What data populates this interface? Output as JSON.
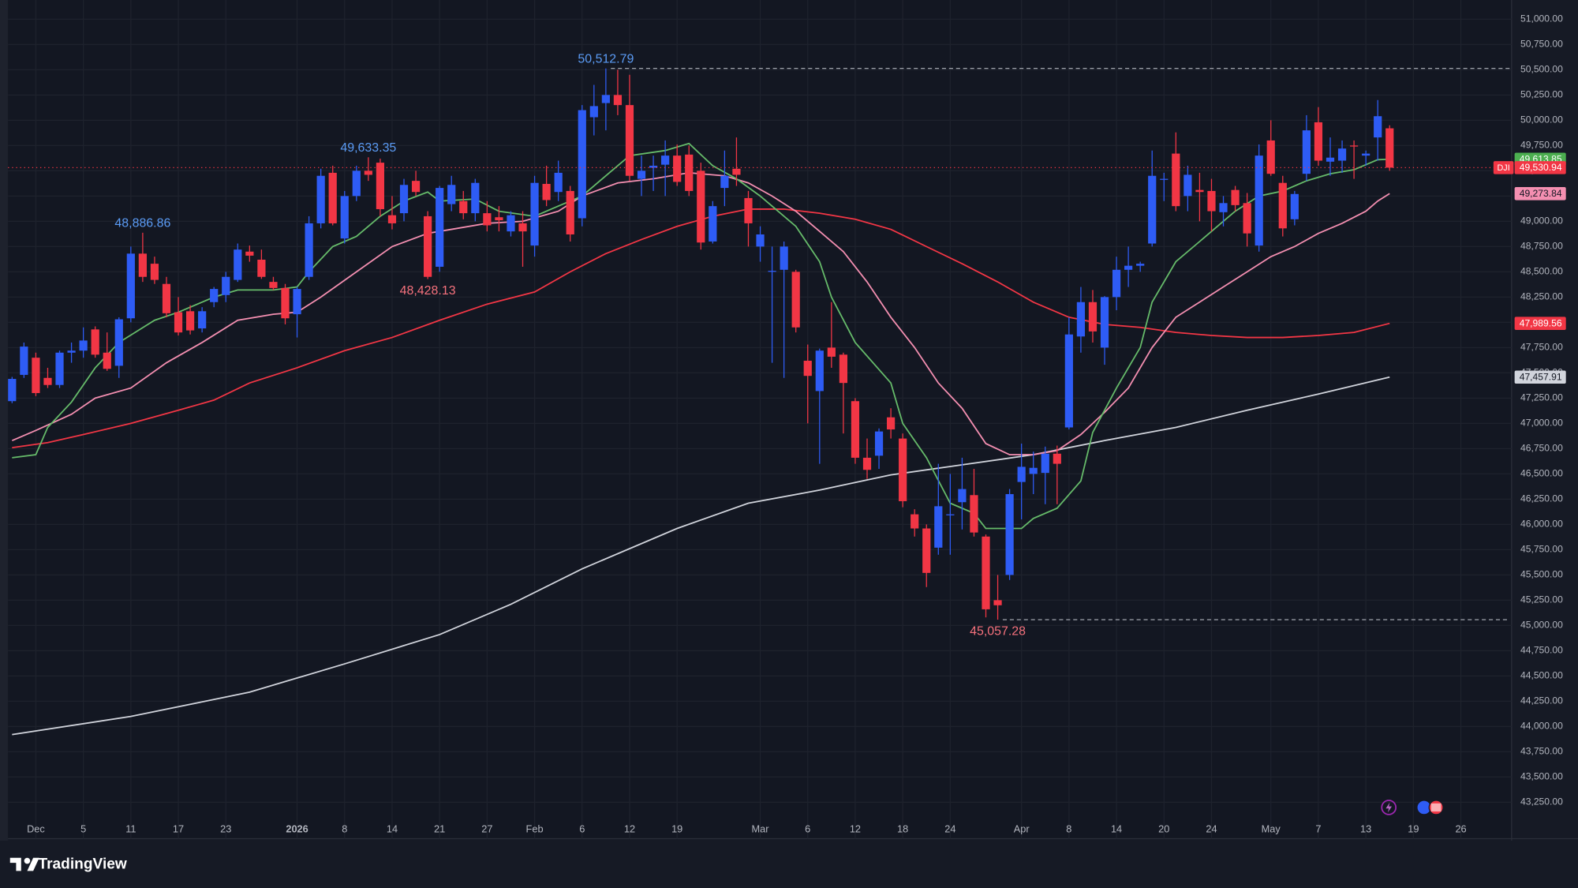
{
  "chart_data": {
    "type": "candlestick",
    "symbol": "DJI",
    "up_color": "#2e5cf5",
    "down_color": "#f23645",
    "grid": true,
    "open": [
      47220,
      47480,
      47650,
      47450,
      47380,
      47700,
      47720,
      47930,
      47700,
      47570,
      48040,
      48680,
      48580,
      48380,
      48100,
      48110,
      47940,
      48200,
      48270,
      48420,
      48700,
      48620,
      48400,
      48340,
      48080,
      48450,
      48980,
      49480,
      48830,
      49250,
      49500,
      49580,
      49060,
      49080,
      49400,
      49050,
      48550,
      49170,
      49200,
      49080,
      49080,
      49040,
      48900,
      48980,
      48760,
      49370,
      49290,
      49300,
      49030,
      50030,
      50170,
      50250,
      50150,
      49420,
      49530,
      49560,
      49650,
      49660,
      49500,
      48800,
      49330,
      49520,
      49230,
      48750,
      48500,
      48520,
      48500,
      47620,
      47320,
      47750,
      47680,
      47220,
      46660,
      46680,
      47060,
      46850,
      46100,
      45960,
      45770,
      46090,
      46220,
      46290,
      45880,
      45250,
      45500,
      46420,
      46500,
      46510,
      46700,
      46960,
      47860,
      48200,
      47750,
      48250,
      48520,
      48560,
      48780,
      49410,
      49670,
      49250,
      49310,
      49300,
      49090,
      49310,
      49180,
      48760,
      49800,
      49380,
      49020,
      49470,
      49980,
      49590,
      49600,
      49750,
      49650,
      49830,
      49920
    ],
    "high": [
      47460,
      47800,
      47700,
      47550,
      47720,
      47800,
      47950,
      47960,
      47900,
      48050,
      48750,
      48886.86,
      48650,
      48450,
      48250,
      48170,
      48150,
      48350,
      48500,
      48780,
      48760,
      48720,
      48450,
      48380,
      48350,
      49050,
      49520,
      49550,
      49300,
      49550,
      49633.35,
      49620,
      49250,
      49420,
      49500,
      49100,
      49350,
      49450,
      49300,
      49420,
      49200,
      49150,
      49100,
      49100,
      49450,
      49550,
      49600,
      49350,
      50150,
      50350,
      50512.79,
      50500,
      50450,
      49650,
      49650,
      49800,
      49760,
      49750,
      49580,
      49200,
      49700,
      49830,
      49300,
      48950,
      48750,
      48800,
      48520,
      47780,
      47740,
      48200,
      47700,
      47250,
      46850,
      46950,
      47150,
      46900,
      46150,
      46000,
      46600,
      46500,
      46660,
      46550,
      45900,
      45500,
      46350,
      46800,
      46720,
      46770,
      46780,
      48050,
      48350,
      48320,
      48260,
      48650,
      48750,
      48600,
      49700,
      49480,
      49880,
      49550,
      49480,
      49420,
      49250,
      49350,
      49280,
      49760,
      50000,
      49450,
      49300,
      50050,
      50130,
      49830,
      49800,
      49800,
      49700,
      50200,
      49950
    ],
    "low": [
      47200,
      47450,
      47270,
      47350,
      47350,
      47600,
      47650,
      47650,
      47520,
      47450,
      48000,
      48400,
      48380,
      48050,
      47870,
      47880,
      47900,
      48150,
      48200,
      48400,
      48600,
      48430,
      48320,
      47980,
      47850,
      48420,
      48930,
      48960,
      48780,
      49200,
      49400,
      49050,
      48920,
      49000,
      49250,
      48428.13,
      48500,
      49100,
      49020,
      49000,
      48900,
      48900,
      48850,
      48550,
      48650,
      49150,
      49200,
      48800,
      48950,
      49850,
      49900,
      50050,
      49400,
      49250,
      49300,
      49250,
      49350,
      49250,
      48720,
      48780,
      49150,
      49350,
      48750,
      48600,
      47600,
      47450,
      47900,
      47000,
      46600,
      47550,
      46900,
      46600,
      46450,
      46550,
      46850,
      46170,
      45880,
      45380,
      45700,
      45700,
      45950,
      45880,
      45080,
      45057.28,
      45450,
      46050,
      46300,
      46200,
      46200,
      46940,
      47700,
      47800,
      47580,
      48120,
      48350,
      48500,
      48750,
      49200,
      49100,
      49100,
      49000,
      48900,
      48950,
      49100,
      48750,
      48700,
      49450,
      48850,
      48960,
      49400,
      49550,
      49450,
      49480,
      49420,
      49550,
      49600,
      49500
    ],
    "close": [
      47440,
      47760,
      47300,
      47380,
      47700,
      47720,
      47820,
      47680,
      47540,
      48030,
      48680,
      48450,
      48420,
      48090,
      47900,
      47920,
      48110,
      48330,
      48450,
      48720,
      48660,
      48450,
      48340,
      48040,
      48330,
      48980,
      49450,
      48980,
      49250,
      49500,
      49460,
      49120,
      48980,
      49360,
      49290,
      48450,
      49330,
      49360,
      49080,
      49380,
      48960,
      49010,
      49060,
      48900,
      49380,
      49210,
      49480,
      48870,
      50100,
      50140,
      50250,
      50150,
      49450,
      49500,
      49550,
      49650,
      49390,
      49300,
      48790,
      49150,
      49450,
      49460,
      48980,
      48870,
      48510,
      48750,
      47950,
      47470,
      47720,
      47660,
      47400,
      46660,
      46540,
      46920,
      46940,
      46230,
      45960,
      45520,
      46180,
      46100,
      46350,
      45920,
      45160,
      45200,
      46300,
      46570,
      46560,
      46700,
      46600,
      47880,
      48200,
      47910,
      48250,
      48520,
      48560,
      48580,
      49450,
      49420,
      49150,
      49460,
      49290,
      49100,
      49180,
      49160,
      48880,
      49650,
      49470,
      48930,
      49270,
      49900,
      49600,
      49630,
      49720,
      49740,
      49670,
      50040,
      49530.94
    ],
    "last_close_label": "49,530.94",
    "xlim": [
      -0.34,
      126.1
    ],
    "ylim": [
      42890,
      51190
    ],
    "xticks": [
      {
        "value": 2,
        "label": "Dec"
      },
      {
        "value": 6,
        "label": "5"
      },
      {
        "value": 10,
        "label": "11"
      },
      {
        "value": 14,
        "label": "17"
      },
      {
        "value": 18,
        "label": "23"
      },
      {
        "value": 24,
        "label": "2026"
      },
      {
        "value": 28,
        "label": "8"
      },
      {
        "value": 32,
        "label": "14"
      },
      {
        "value": 36,
        "label": "21"
      },
      {
        "value": 40,
        "label": "27"
      },
      {
        "value": 44,
        "label": "Feb"
      },
      {
        "value": 48,
        "label": "6"
      },
      {
        "value": 52,
        "label": "12"
      },
      {
        "value": 56,
        "label": "19"
      },
      {
        "value": 63,
        "label": "Mar"
      },
      {
        "value": 67,
        "label": "6"
      },
      {
        "value": 71,
        "label": "12"
      },
      {
        "value": 75,
        "label": "18"
      },
      {
        "value": 79,
        "label": "24"
      },
      {
        "value": 85,
        "label": "Apr"
      },
      {
        "value": 89,
        "label": "8"
      },
      {
        "value": 93,
        "label": "14"
      },
      {
        "value": 97,
        "label": "20"
      },
      {
        "value": 101,
        "label": "24"
      },
      {
        "value": 106,
        "label": "May"
      },
      {
        "value": 110,
        "label": "7"
      },
      {
        "value": 114,
        "label": "13"
      },
      {
        "value": 118,
        "label": "19"
      },
      {
        "value": 122,
        "label": "26"
      }
    ],
    "yticks": [
      {
        "value": 43250,
        "label": "43,250.00"
      },
      {
        "value": 43500,
        "label": "43,500.00"
      },
      {
        "value": 43750,
        "label": "43,750.00"
      },
      {
        "value": 44000,
        "label": "44,000.00"
      },
      {
        "value": 44250,
        "label": "44,250.00"
      },
      {
        "value": 44500,
        "label": "44,500.00"
      },
      {
        "value": 44750,
        "label": "44,750.00"
      },
      {
        "value": 45000,
        "label": "45,000.00"
      },
      {
        "value": 45250,
        "label": "45,250.00"
      },
      {
        "value": 45500,
        "label": "45,500.00"
      },
      {
        "value": 45750,
        "label": "45,750.00"
      },
      {
        "value": 46000,
        "label": "46,000.00"
      },
      {
        "value": 46250,
        "label": "46,250.00"
      },
      {
        "value": 46500,
        "label": "46,500.00"
      },
      {
        "value": 46750,
        "label": "46,750.00"
      },
      {
        "value": 47000,
        "label": "47,000.00"
      },
      {
        "value": 47250,
        "label": "47,250.00"
      },
      {
        "value": 47500,
        "label": "47,500.00"
      },
      {
        "value": 47750,
        "label": "47,750.00"
      },
      {
        "value": 48000,
        "label": "48,000.00"
      },
      {
        "value": 48250,
        "label": "48,250.00"
      },
      {
        "value": 48500,
        "label": "48,500.00"
      },
      {
        "value": 48750,
        "label": "48,750.00"
      },
      {
        "value": 49000,
        "label": "49,000.00"
      },
      {
        "value": 49250,
        "label": "49,250.00"
      },
      {
        "value": 49500,
        "label": "49,500.00"
      },
      {
        "value": 49750,
        "label": "49,750.00"
      },
      {
        "value": 50000,
        "label": "50,000.00"
      },
      {
        "value": 50250,
        "label": "50,250.00"
      },
      {
        "value": 50500,
        "label": "50,500.00"
      },
      {
        "value": 50750,
        "label": "50,750.00"
      },
      {
        "value": 51000,
        "label": "51,000.00"
      }
    ],
    "moving_averages": [
      {
        "color": "#ffffff",
        "tag_text_color": "#131722",
        "tag_color": "#d1d4dc",
        "line_color": "#d1d4dc",
        "x": [
          0,
          10,
          20,
          28,
          36,
          42,
          48,
          56,
          62,
          68,
          74,
          80,
          86,
          92,
          98,
          104,
          110,
          116
        ],
        "values": [
          43920,
          44100,
          44340,
          44620,
          44910,
          45210,
          45560,
          45960,
          46210,
          46340,
          46490,
          46590,
          46690,
          46830,
          46960,
          47130,
          47290,
          47457.91
        ],
        "last_label": "47,457.91"
      },
      {
        "color": "#f23645",
        "tag_text_color": "#ffffff",
        "tag_color": "#f23645",
        "line_color": "#f23645",
        "x": [
          0,
          3,
          6,
          10,
          14,
          17,
          20,
          24,
          28,
          32,
          36,
          40,
          44,
          47,
          50,
          53,
          56,
          59,
          62,
          65,
          68,
          71,
          74,
          77,
          80,
          83,
          86,
          89,
          92,
          95,
          98,
          101,
          104,
          107,
          110,
          113,
          116
        ],
        "values": [
          46760,
          46810,
          46890,
          47000,
          47130,
          47230,
          47400,
          47550,
          47720,
          47850,
          48020,
          48180,
          48300,
          48500,
          48680,
          48820,
          48950,
          49050,
          49120,
          49120,
          49080,
          49020,
          48920,
          48750,
          48580,
          48400,
          48200,
          48050,
          47980,
          47950,
          47900,
          47870,
          47850,
          47850,
          47870,
          47900,
          47989.56
        ],
        "last_label": "47,989.56"
      },
      {
        "color": "#f48fb1",
        "tag_text_color": "#131722",
        "tag_color": "#f48fb1",
        "line_color": "#f48fb1",
        "x": [
          0,
          2,
          5,
          7,
          10,
          13,
          16,
          19,
          22,
          24,
          26,
          29,
          32,
          35,
          37,
          40,
          43,
          46,
          48,
          51,
          54,
          57,
          60,
          62,
          64,
          66,
          68,
          70,
          72,
          74,
          76,
          78,
          80,
          82,
          84,
          86,
          88,
          90,
          92,
          94,
          96,
          98,
          100,
          102,
          104,
          106,
          108,
          110,
          112,
          114,
          115,
          116
        ],
        "values": [
          46830,
          46930,
          47090,
          47250,
          47350,
          47600,
          47800,
          48020,
          48080,
          48100,
          48250,
          48500,
          48750,
          48880,
          48920,
          48980,
          49000,
          49100,
          49250,
          49380,
          49420,
          49480,
          49450,
          49380,
          49250,
          49100,
          48900,
          48700,
          48400,
          48050,
          47750,
          47400,
          47150,
          46800,
          46690,
          46690,
          46730,
          46890,
          47110,
          47350,
          47750,
          48050,
          48200,
          48350,
          48500,
          48650,
          48750,
          48880,
          48980,
          49100,
          49200,
          49273.84
        ],
        "last_label": "49,273.84"
      },
      {
        "color": "#66bb6a",
        "tag_text_color": "#ffffff",
        "tag_color": "#4caf50",
        "line_color": "#66bb6a",
        "x": [
          0,
          2,
          3,
          5,
          7,
          9,
          12,
          14,
          17,
          19,
          22,
          24,
          25,
          27,
          29,
          31,
          33,
          35,
          36,
          39,
          41,
          44,
          46,
          48,
          50,
          52,
          55,
          57,
          59,
          61,
          63,
          66,
          68,
          69,
          71,
          74,
          75,
          77,
          79,
          81,
          82,
          85,
          86,
          88,
          90,
          91,
          93,
          95,
          96,
          98,
          100,
          102,
          103,
          105,
          107,
          109,
          111,
          113,
          115,
          116
        ],
        "values": [
          46660,
          46690,
          46960,
          47210,
          47550,
          47800,
          48020,
          48100,
          48250,
          48320,
          48320,
          48350,
          48500,
          48750,
          48850,
          49050,
          49200,
          49290,
          49200,
          49220,
          49100,
          49050,
          49150,
          49250,
          49450,
          49650,
          49700,
          49770,
          49550,
          49420,
          49250,
          48950,
          48600,
          48250,
          47800,
          47400,
          47000,
          46660,
          46210,
          46110,
          45960,
          45960,
          46060,
          46160,
          46430,
          46910,
          47350,
          47750,
          48200,
          48600,
          48800,
          49000,
          49100,
          49250,
          49300,
          49400,
          49470,
          49510,
          49610,
          49613.85
        ],
        "last_label": "49,613.85"
      }
    ],
    "annotations": [
      {
        "x": 11,
        "at": "high",
        "label": "48,886.86",
        "color": "#5b9cf6",
        "dashed": false
      },
      {
        "x": 30,
        "at": "high",
        "label": "49,633.35",
        "color": "#5b9cf6",
        "dashed": false
      },
      {
        "x": 35,
        "at": "low",
        "label": "48,428.13",
        "color": "#f7727d",
        "dashed": false
      },
      {
        "x": 50,
        "at": "high",
        "label": "50,512.79",
        "color": "#5b9cf6",
        "dashed": true
      },
      {
        "x": 83,
        "at": "low",
        "label": "45,057.28",
        "color": "#f7727d",
        "dashed": true
      }
    ]
  },
  "footer": {
    "brand": "TradingView"
  }
}
